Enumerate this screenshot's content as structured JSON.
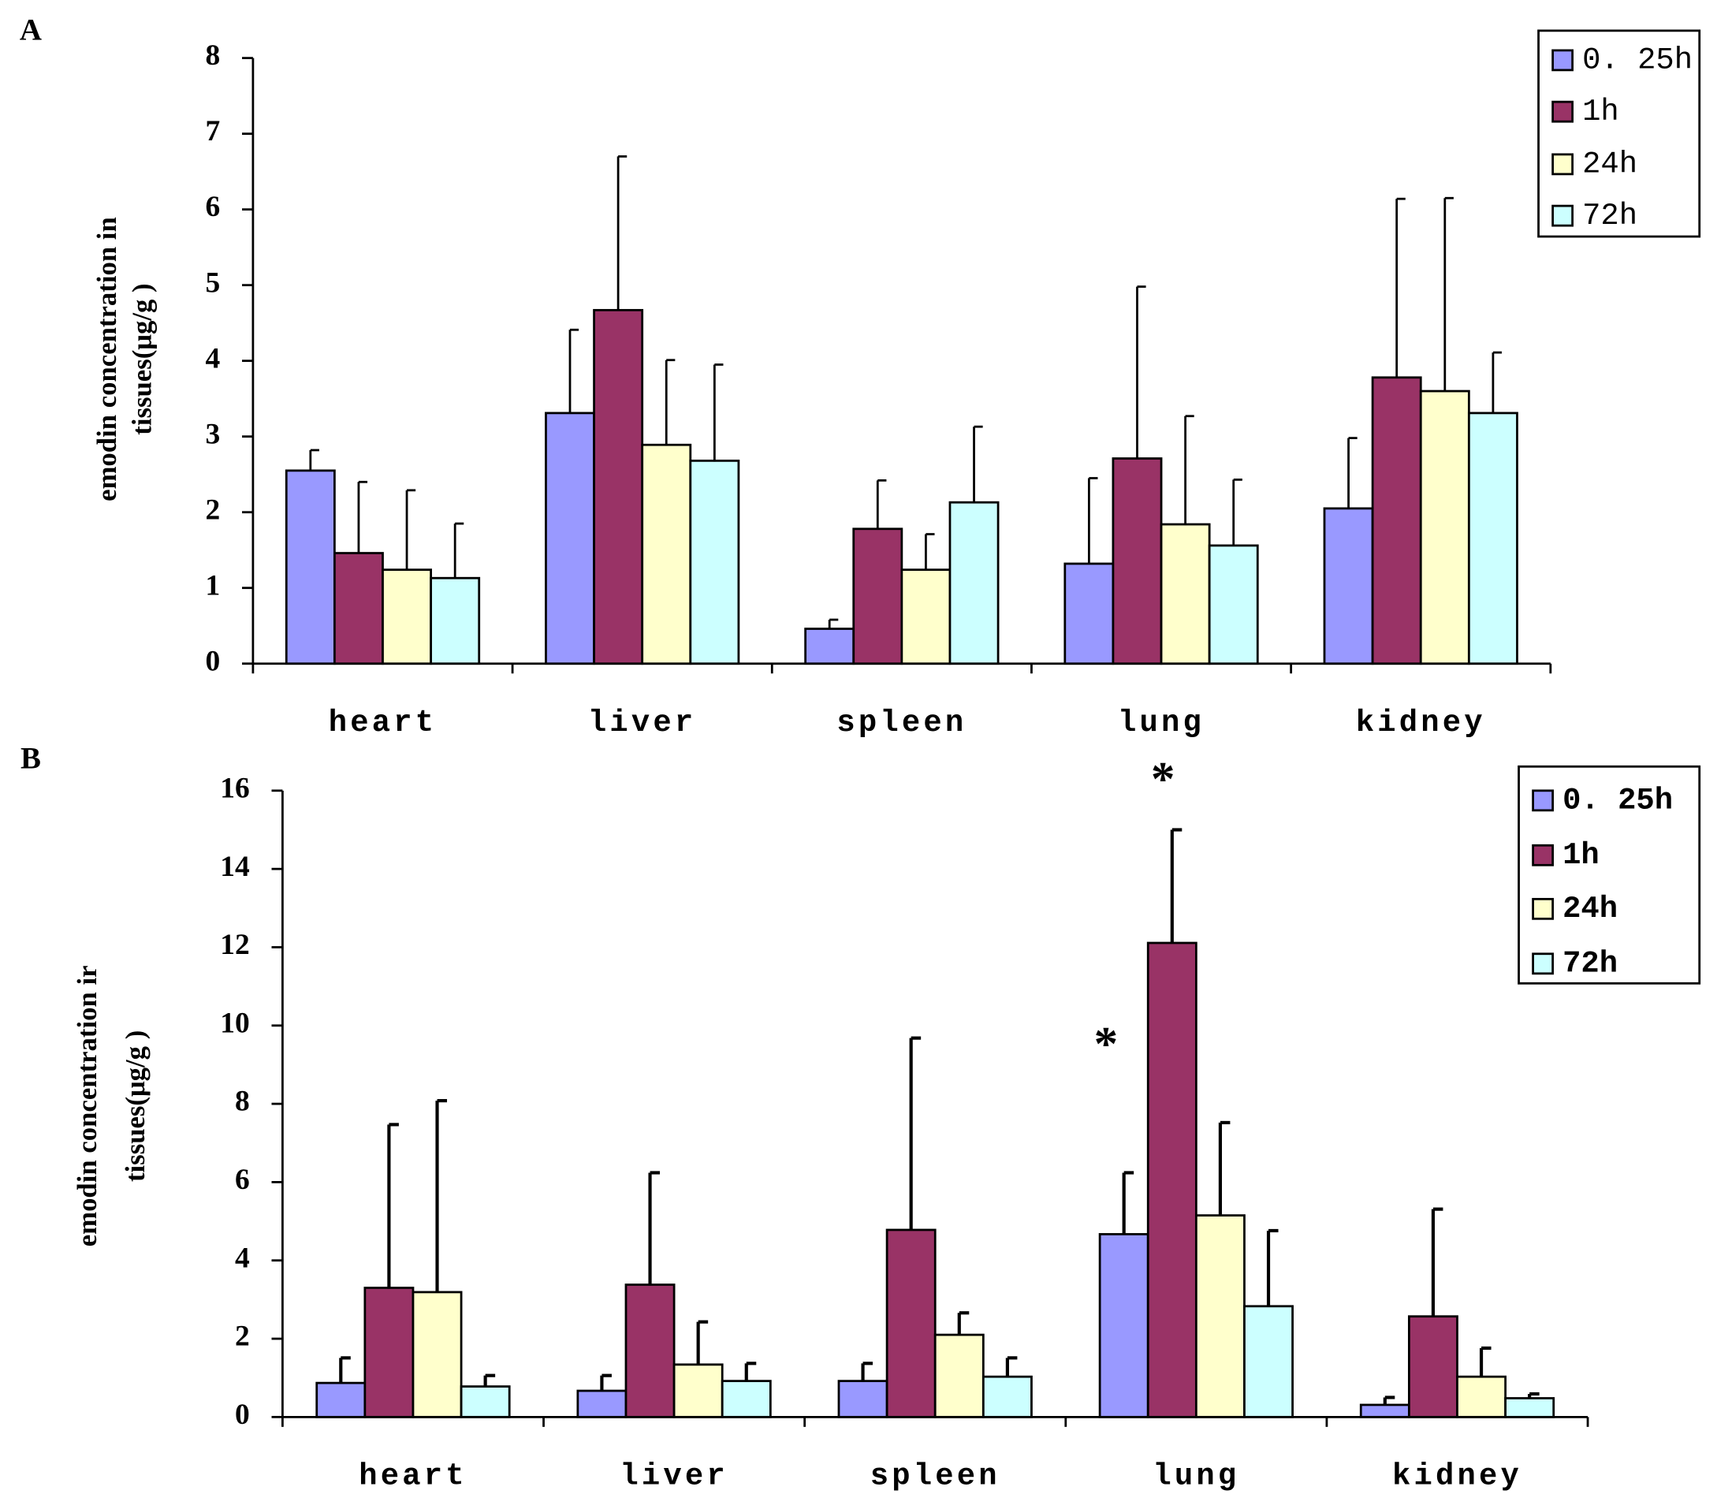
{
  "chart_data": [
    {
      "type": "bar",
      "panel": "A",
      "y_label": [
        "emodin concentration in",
        "tissues(μg/g )"
      ],
      "categories": [
        "heart",
        "liver",
        "spleen",
        "lung",
        "kidney"
      ],
      "series": [
        {
          "name": "0. 25h",
          "color": "#9999ff",
          "values": [
            2.55,
            3.31,
            0.46,
            1.32,
            2.05
          ],
          "errors": [
            0.27,
            1.1,
            0.12,
            1.13,
            0.93
          ]
        },
        {
          "name": "1h",
          "color": "#993366",
          "values": [
            1.46,
            4.67,
            1.78,
            2.71,
            3.78
          ],
          "errors": [
            0.94,
            2.03,
            0.64,
            2.27,
            2.36
          ]
        },
        {
          "name": "24h",
          "color": "#ffffcc",
          "values": [
            1.24,
            2.89,
            1.24,
            1.84,
            3.6
          ],
          "errors": [
            1.05,
            1.12,
            0.47,
            1.43,
            2.55
          ]
        },
        {
          "name": "72h",
          "color": "#ccffff",
          "values": [
            1.13,
            2.68,
            2.13,
            1.56,
            3.31
          ],
          "errors": [
            0.72,
            1.27,
            1.0,
            0.87,
            0.8
          ]
        }
      ],
      "ylim": [
        0,
        8
      ],
      "yticks": [
        0,
        1,
        2,
        3,
        4,
        5,
        6,
        7,
        8
      ],
      "legend": "upper right"
    },
    {
      "type": "bar",
      "panel": "B",
      "y_label": [
        "emodin concentration ir",
        "tissues(μg/g )"
      ],
      "categories": [
        "heart",
        "liver",
        "spleen",
        "lung",
        "kidney"
      ],
      "series": [
        {
          "name": "0. 25h",
          "color": "#9999ff",
          "values": [
            0.87,
            0.67,
            0.92,
            4.67,
            0.31
          ],
          "errors": [
            0.64,
            0.39,
            0.45,
            1.57,
            0.19
          ]
        },
        {
          "name": "1h",
          "color": "#993366",
          "values": [
            3.3,
            3.38,
            4.78,
            12.11,
            2.57
          ],
          "errors": [
            4.17,
            2.86,
            4.9,
            2.89,
            2.74
          ]
        },
        {
          "name": "24h",
          "color": "#ffffcc",
          "values": [
            3.19,
            1.34,
            2.1,
            5.15,
            1.03
          ],
          "errors": [
            4.89,
            1.09,
            0.56,
            2.37,
            0.73
          ]
        },
        {
          "name": "72h",
          "color": "#ccffff",
          "values": [
            0.78,
            0.92,
            1.03,
            2.83,
            0.48
          ],
          "errors": [
            0.28,
            0.45,
            0.48,
            1.93,
            0.11
          ]
        }
      ],
      "ylim": [
        0,
        16
      ],
      "yticks": [
        0,
        2,
        4,
        6,
        8,
        10,
        12,
        14,
        16
      ],
      "legend": "upper right",
      "annotations": [
        "*",
        "*"
      ]
    }
  ]
}
